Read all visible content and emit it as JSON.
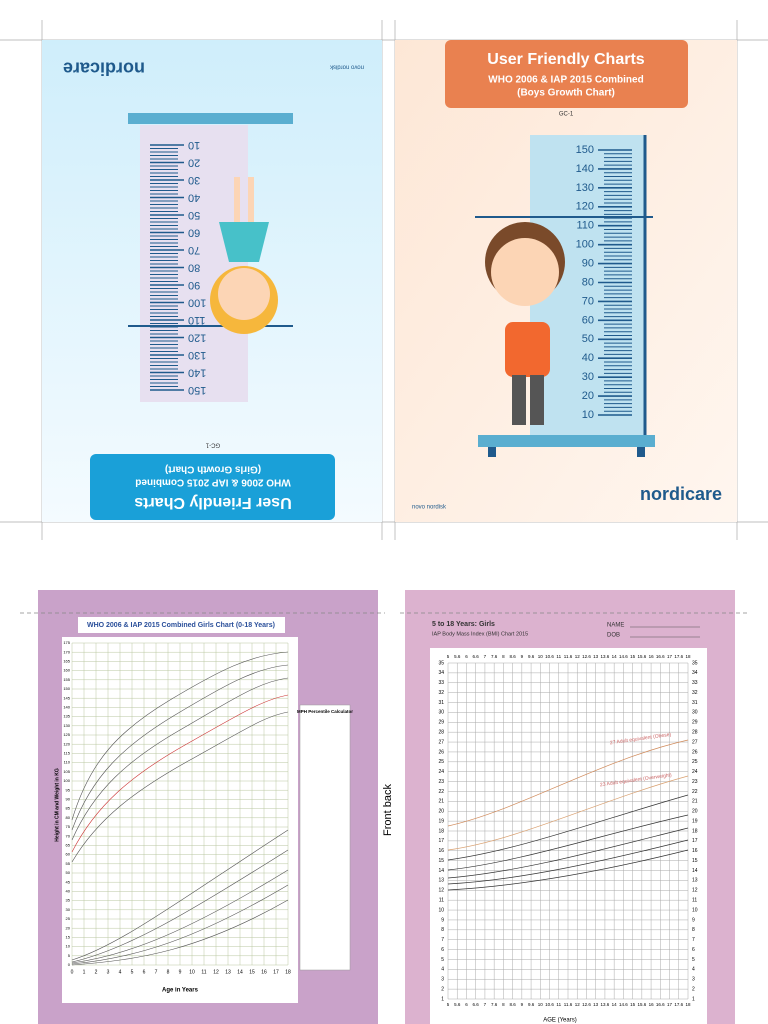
{
  "girls_cover": {
    "brand": "nordicare",
    "maker": "novo nordisk",
    "title": "User Friendly Charts",
    "subtitle": "WHO 2006 & IAP 2015 Combined",
    "chart_name": "(Girls Growth Chart)",
    "code": "GC-1",
    "ruler_labels": [
      10,
      20,
      30,
      40,
      50,
      60,
      70,
      80,
      90,
      100,
      110,
      120,
      130,
      140,
      150
    ]
  },
  "boys_cover": {
    "brand": "nordicare",
    "maker": "novo nordisk",
    "title": "User Friendly Charts",
    "subtitle": "WHO 2006 & IAP 2015 Combined",
    "chart_name": "(Boys Growth Chart)",
    "code": "GC-1",
    "ruler_labels": [
      10,
      20,
      30,
      40,
      50,
      60,
      70,
      80,
      90,
      100,
      110,
      120,
      130,
      140,
      150
    ]
  },
  "girls_chart": {
    "title": "WHO 2006 & IAP 2015 Combined Girls Chart (0-18 Years)",
    "y_label": "Height in CM and Weight in KG",
    "x_label": "Age in Years",
    "calculator_title": "MPH Percentile Calculator",
    "y_ticks": [
      0,
      5,
      10,
      15,
      20,
      25,
      30,
      35,
      40,
      45,
      50,
      55,
      60,
      65,
      70,
      75,
      80,
      85,
      90,
      95,
      100,
      105,
      110,
      115,
      120,
      125,
      130,
      135,
      140,
      145,
      150,
      155,
      160,
      165,
      170,
      175
    ],
    "x_ticks": [
      0,
      1,
      2,
      3,
      4,
      5,
      6,
      7,
      8,
      9,
      10,
      11,
      12,
      13,
      14,
      15,
      16,
      17,
      18
    ]
  },
  "bmi_chart": {
    "title": "5 to 18 Years: Girls",
    "subtitle": "IAP Body Mass Index (BMI) Chart 2015",
    "name_label": "NAME",
    "dob_label": "DOB",
    "x_label": "AGE (Years)",
    "obese_label": "27 Adult equivalent (Obese)",
    "overweight_label": "23 Adult equivalent (Overweight)",
    "y_ticks": [
      1,
      2,
      3,
      4,
      5,
      6,
      7,
      8,
      9,
      10,
      11,
      12,
      13,
      14,
      15,
      16,
      17,
      18,
      19,
      20,
      21,
      22,
      23,
      24,
      25,
      26,
      27,
      28,
      29,
      30,
      31,
      32,
      33,
      34,
      35
    ],
    "x_ticks": [
      5,
      5.6,
      6,
      6.6,
      7,
      7.6,
      8,
      8.6,
      9,
      9.6,
      10,
      10.6,
      11,
      11.6,
      12,
      12.6,
      13,
      13.6,
      14,
      14.6,
      15,
      15.6,
      16,
      16.6,
      17,
      17.6,
      18
    ]
  },
  "side_note": "Front back"
}
